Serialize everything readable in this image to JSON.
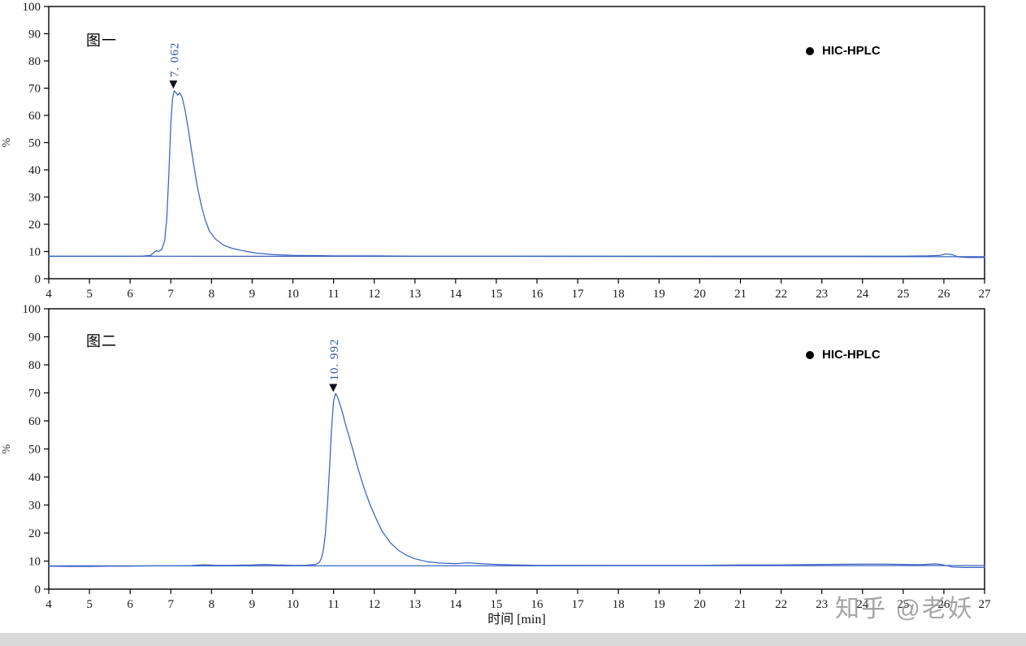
{
  "page": {
    "watermark": "知乎 @老妖"
  },
  "chart_data": [
    {
      "type": "line",
      "title": "图一",
      "legend_label": "HIC-HPLC",
      "legend_position": "top-right",
      "xlabel": "",
      "ylabel": "%",
      "xlim": [
        4,
        27
      ],
      "ylim": [
        0,
        100
      ],
      "x_tick_step": 1,
      "y_tick_step": 10,
      "grid": false,
      "line_color": "#3a62c4",
      "peak": {
        "time": 7.062,
        "value": 69.5,
        "label": "7. 062"
      },
      "series": [
        {
          "name": "HIC-HPLC",
          "points": [
            [
              4,
              8.2
            ],
            [
              4.5,
              8.2
            ],
            [
              5,
              8.2
            ],
            [
              5.5,
              8.2
            ],
            [
              6,
              8.2
            ],
            [
              6.3,
              8.3
            ],
            [
              6.5,
              8.6
            ],
            [
              6.6,
              9.8
            ],
            [
              6.65,
              10.3
            ],
            [
              6.7,
              10.0
            ],
            [
              6.78,
              10.8
            ],
            [
              6.85,
              14
            ],
            [
              6.9,
              22
            ],
            [
              6.95,
              38
            ],
            [
              7.0,
              57
            ],
            [
              7.04,
              66
            ],
            [
              7.08,
              69
            ],
            [
              7.12,
              68.5
            ],
            [
              7.17,
              67.4
            ],
            [
              7.22,
              68.3
            ],
            [
              7.28,
              66.5
            ],
            [
              7.35,
              62
            ],
            [
              7.45,
              53
            ],
            [
              7.55,
              43
            ],
            [
              7.65,
              34
            ],
            [
              7.75,
              27
            ],
            [
              7.85,
              21.5
            ],
            [
              7.95,
              17.5
            ],
            [
              8.1,
              14.5
            ],
            [
              8.3,
              12.3
            ],
            [
              8.5,
              11.2
            ],
            [
              8.8,
              10.2
            ],
            [
              9.1,
              9.4
            ],
            [
              9.5,
              8.9
            ],
            [
              10,
              8.6
            ],
            [
              10.5,
              8.5
            ],
            [
              11,
              8.4
            ],
            [
              12,
              8.4
            ],
            [
              13,
              8.3
            ],
            [
              14,
              8.3
            ],
            [
              15,
              8.3
            ],
            [
              16,
              8.3
            ],
            [
              17,
              8.3
            ],
            [
              18,
              8.3
            ],
            [
              19,
              8.3
            ],
            [
              20,
              8.3
            ],
            [
              21,
              8.3
            ],
            [
              22,
              8.3
            ],
            [
              23,
              8.3
            ],
            [
              24,
              8.3
            ],
            [
              25,
              8.3
            ],
            [
              25.6,
              8.4
            ],
            [
              25.9,
              8.6
            ],
            [
              26.05,
              9.1
            ],
            [
              26.2,
              8.9
            ],
            [
              26.35,
              8.0
            ],
            [
              26.6,
              7.8
            ],
            [
              27,
              7.8
            ]
          ]
        },
        {
          "name": "baseline",
          "points": [
            [
              4,
              8.3
            ],
            [
              27,
              8.1
            ]
          ]
        }
      ]
    },
    {
      "type": "line",
      "title": "图二",
      "legend_label": "HIC-HPLC",
      "legend_position": "top-right",
      "xlabel": "时间 [min]",
      "ylabel": "%",
      "xlim": [
        4,
        27
      ],
      "ylim": [
        0,
        100
      ],
      "x_tick_step": 1,
      "y_tick_step": 10,
      "grid": false,
      "line_color": "#3a62c4",
      "peak": {
        "time": 10.992,
        "value": 70,
        "label": "10. 992"
      },
      "series": [
        {
          "name": "HIC-HPLC",
          "points": [
            [
              4,
              8.2
            ],
            [
              4.5,
              8.1
            ],
            [
              5,
              8.1
            ],
            [
              5.5,
              8.2
            ],
            [
              6,
              8.2
            ],
            [
              6.5,
              8.3
            ],
            [
              7,
              8.3
            ],
            [
              7.5,
              8.4
            ],
            [
              7.8,
              8.7
            ],
            [
              8.1,
              8.5
            ],
            [
              8.5,
              8.5
            ],
            [
              9,
              8.6
            ],
            [
              9.3,
              8.8
            ],
            [
              9.6,
              8.6
            ],
            [
              10,
              8.5
            ],
            [
              10.3,
              8.5
            ],
            [
              10.55,
              8.8
            ],
            [
              10.65,
              9.5
            ],
            [
              10.7,
              11
            ],
            [
              10.75,
              14
            ],
            [
              10.8,
              20
            ],
            [
              10.85,
              30
            ],
            [
              10.9,
              43
            ],
            [
              10.95,
              57
            ],
            [
              11.0,
              67
            ],
            [
              11.05,
              69.8
            ],
            [
              11.1,
              68.5
            ],
            [
              11.2,
              64
            ],
            [
              11.3,
              58.5
            ],
            [
              11.45,
              51
            ],
            [
              11.6,
              43
            ],
            [
              11.75,
              36
            ],
            [
              11.9,
              30
            ],
            [
              12.05,
              25
            ],
            [
              12.2,
              20.5
            ],
            [
              12.4,
              16.5
            ],
            [
              12.6,
              13.8
            ],
            [
              12.8,
              12
            ],
            [
              13.0,
              10.8
            ],
            [
              13.3,
              9.8
            ],
            [
              13.6,
              9.3
            ],
            [
              14.0,
              9.1
            ],
            [
              14.3,
              9.4
            ],
            [
              14.6,
              9.1
            ],
            [
              15,
              8.8
            ],
            [
              15.5,
              8.6
            ],
            [
              16,
              8.5
            ],
            [
              17,
              8.5
            ],
            [
              18,
              8.5
            ],
            [
              19,
              8.5
            ],
            [
              20,
              8.5
            ],
            [
              21,
              8.6
            ],
            [
              22,
              8.6
            ],
            [
              23,
              8.8
            ],
            [
              24,
              8.9
            ],
            [
              24.5,
              8.9
            ],
            [
              25,
              8.8
            ],
            [
              25.4,
              8.7
            ],
            [
              25.8,
              9.0
            ],
            [
              26.0,
              8.6
            ],
            [
              26.2,
              7.9
            ],
            [
              26.5,
              7.7
            ],
            [
              27,
              7.7
            ]
          ]
        },
        {
          "name": "baseline",
          "points": [
            [
              4,
              8.3
            ],
            [
              27,
              8.4
            ]
          ]
        }
      ]
    }
  ]
}
